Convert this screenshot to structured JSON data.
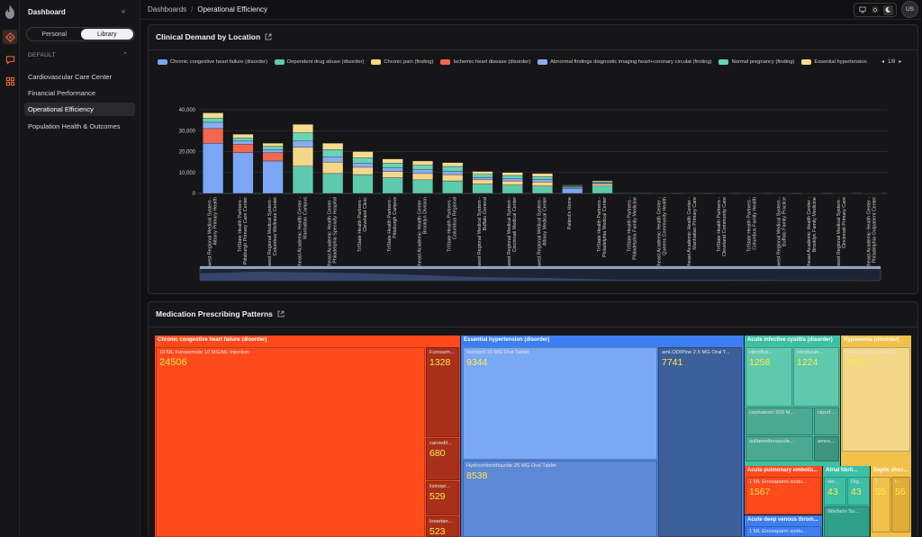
{
  "sidebar": {
    "title": "Dashboard",
    "collapse": "«",
    "tabs": [
      "Personal",
      "Library"
    ],
    "section": "DEFAULT",
    "items": [
      "Cardiovascular Care Center",
      "Financial Performance",
      "Operational Efficiency",
      "Population Health & Outcomes"
    ]
  },
  "topbar": {
    "breadcrumb_root": "Dashboards",
    "breadcrumb_sep": "/",
    "breadcrumb_current": "Operational Efficiency",
    "avatar": "US"
  },
  "panel1": {
    "title": "Clinical Demand by Location",
    "pager": "1/8",
    "legend": [
      {
        "name": "Chronic congestive heart failure (disorder)",
        "color": "#7aa6f5"
      },
      {
        "name": "Dependent drug abuse (disorder)",
        "color": "#5ec9ad"
      },
      {
        "name": "Chronic pain (finding)",
        "color": "#f5d789"
      },
      {
        "name": "Ischemic heart disease (disorder)",
        "color": "#f2674f"
      },
      {
        "name": "Abnormal findings diagnostic imaging heart+coronary circulat (finding)",
        "color": "#8aaef2"
      },
      {
        "name": "Normal pregnancy (finding)",
        "color": "#67d4b7"
      },
      {
        "name": "Essential hypertension",
        "color": "#f5dd8f"
      }
    ]
  },
  "chart_data": {
    "type": "bar",
    "ylim": [
      0,
      40000
    ],
    "yticks": [
      "0",
      "10,000",
      "20,000",
      "30,000",
      "40,000"
    ],
    "categories": [
      "Midwest Regional Medical System - Albany Primary Health",
      "TriState Health Partners - Pittsburgh Primary Care Center",
      "Midwest Regional Medical System - Columbus Wellness Center",
      "Northeast Academic Health Center - Manhattan Campus",
      "Northeast Academic Health Center - Philadelphia Specialty Hospital",
      "TriState Health Partners - Cleveland Clinic",
      "TriState Health Partners - Pittsburgh Campus",
      "Northeast Academic Health Center - Brooklyn Division",
      "TriState Health Partners - Columbus Regional",
      "Midwest Regional Medical System - Buffalo General",
      "Midwest Regional Medical System - Cincinnati Medical Center",
      "Midwest Regional Medical System - Albany Medical Center",
      "Patient's Home",
      "TriState Health Partners - Philadelphia Medical Center",
      "TriState Health Partners - Philadelphia Family Medicine",
      "Northeast Academic Health Center - Queens Community Health",
      "Northeast Academic Health Center - Manhattan Primary Care",
      "TriState Health Partners - Cleveland Community Care",
      "TriState Health Partners - Columbus Family Health",
      "Midwest Regional Medical System - Buffalo Family Practice",
      "Northeast Academic Health Center - Brooklyn Family Medicine",
      "Midwest Regional Medical System - Cincinnati Primary Care",
      "Northeast Academic Health Center - Philadelphia Outpatient Center"
    ],
    "series": [
      {
        "name": "Chronic congestive heart failure (disorder)",
        "color": "#7aa6f5",
        "values": [
          24000,
          19500,
          15500,
          0,
          0,
          0,
          0,
          0,
          0,
          0,
          0,
          0,
          2500,
          0,
          0,
          0,
          0,
          0,
          0,
          0,
          0,
          0,
          0
        ]
      },
      {
        "name": "Dependent drug abuse (disorder)",
        "color": "#5ec9ad",
        "values": [
          0,
          0,
          0,
          13000,
          9500,
          9000,
          7500,
          6500,
          6000,
          4500,
          4000,
          3500,
          500,
          3500,
          200,
          150,
          100,
          100,
          100,
          100,
          80,
          80,
          80
        ]
      },
      {
        "name": "Chronic pain (finding)",
        "color": "#f5d789",
        "values": [
          0,
          0,
          0,
          9000,
          5500,
          3500,
          3000,
          3000,
          3000,
          2000,
          2000,
          2000,
          200,
          1000,
          100,
          80,
          60,
          50,
          50,
          50,
          40,
          40,
          40
        ]
      },
      {
        "name": "Ischemic heart disease (disorder)",
        "color": "#f2674f",
        "values": [
          7000,
          4000,
          4000,
          0,
          0,
          0,
          0,
          0,
          0,
          0,
          0,
          0,
          0,
          0,
          0,
          0,
          0,
          0,
          0,
          0,
          0,
          0,
          0
        ]
      },
      {
        "name": "Abnormal findings diagnostic imaging heart+coronary circulat (finding)",
        "color": "#8aaef2",
        "values": [
          3000,
          1500,
          1500,
          3000,
          2500,
          2000,
          1800,
          1800,
          1700,
          1200,
          1200,
          1200,
          300,
          500,
          80,
          40,
          30,
          30,
          30,
          30,
          20,
          20,
          20
        ]
      },
      {
        "name": "Normal pregnancy (finding)",
        "color": "#67d4b7",
        "values": [
          2000,
          1500,
          1500,
          4000,
          3500,
          2500,
          2200,
          2200,
          2200,
          1400,
          1400,
          1300,
          200,
          500,
          60,
          40,
          30,
          30,
          30,
          30,
          20,
          20,
          20
        ]
      },
      {
        "name": "Essential hypertension",
        "color": "#f5dd8f",
        "values": [
          2500,
          1800,
          1500,
          4000,
          3000,
          3000,
          2000,
          2000,
          1800,
          1400,
          1400,
          1500,
          300,
          500,
          60,
          40,
          30,
          30,
          30,
          30,
          20,
          20,
          20
        ]
      }
    ]
  },
  "panel2": {
    "title": "Medication Prescribing Patterns",
    "groups": [
      {
        "name": "Chronic congestive heart failure (disorder)",
        "color": "#ff4a1c"
      },
      {
        "name": "Essential hypertension (disorder)",
        "color": "#3d7ef2"
      },
      {
        "name": "Acute infective cystitis (disorder)",
        "color": "#3dbfa5"
      },
      {
        "name": "Hypoxemia (disorder)",
        "color": "#f2c14b"
      },
      {
        "name": "Acute pulmonary embolis...",
        "color": "#ff4a1c"
      },
      {
        "name": "Atrial fibril...",
        "color": "#3dbfa5"
      },
      {
        "name": "Septic shoc...",
        "color": "#f2c14b"
      },
      {
        "name": "Acute deep venous throm...",
        "color": "#3d7ef2"
      }
    ],
    "tiles": [
      {
        "label": "10 ML Furosemide 10 MG/ML Injection",
        "value": "24506"
      },
      {
        "label": "Furosem...",
        "value": "1328"
      },
      {
        "label": "carvedil...",
        "value": "680"
      },
      {
        "label": "lisinopr...",
        "value": "529"
      },
      {
        "label": "losartan...",
        "value": "523"
      },
      {
        "label": "lisinopril 10 MG Oral Tablet",
        "value": "9344"
      },
      {
        "label": "amLODIPine 2.5 MG Oral T...",
        "value": "7741"
      },
      {
        "label": "Hydrochlorothiazide 25 MG Oral Tablet",
        "value": "8538"
      },
      {
        "label": "ciproflox...",
        "value": "1258"
      },
      {
        "label": "nitrofuran...",
        "value": "1224"
      },
      {
        "label": "cephalexin 500 M...",
        "value": ""
      },
      {
        "label": "ciproflo...",
        "value": ""
      },
      {
        "label": "sulfamethoxazole...",
        "value": ""
      },
      {
        "label": "amoxi...",
        "value": ""
      },
      {
        "label": "NDA020503 200 ACT...",
        "value": "3557"
      },
      {
        "label": "1 ML Enoxaparin sodiu...",
        "value": "1567"
      },
      {
        "label": "ver...",
        "value": "43"
      },
      {
        "label": "Dig...",
        "value": "43"
      },
      {
        "label": "Warfarin So...",
        "value": ""
      },
      {
        "label": "1 ...",
        "value": "55"
      },
      {
        "label": "f...",
        "value": "55"
      },
      {
        "label": "1 ML Enoxaparin sodiu...",
        "value": ""
      }
    ]
  }
}
